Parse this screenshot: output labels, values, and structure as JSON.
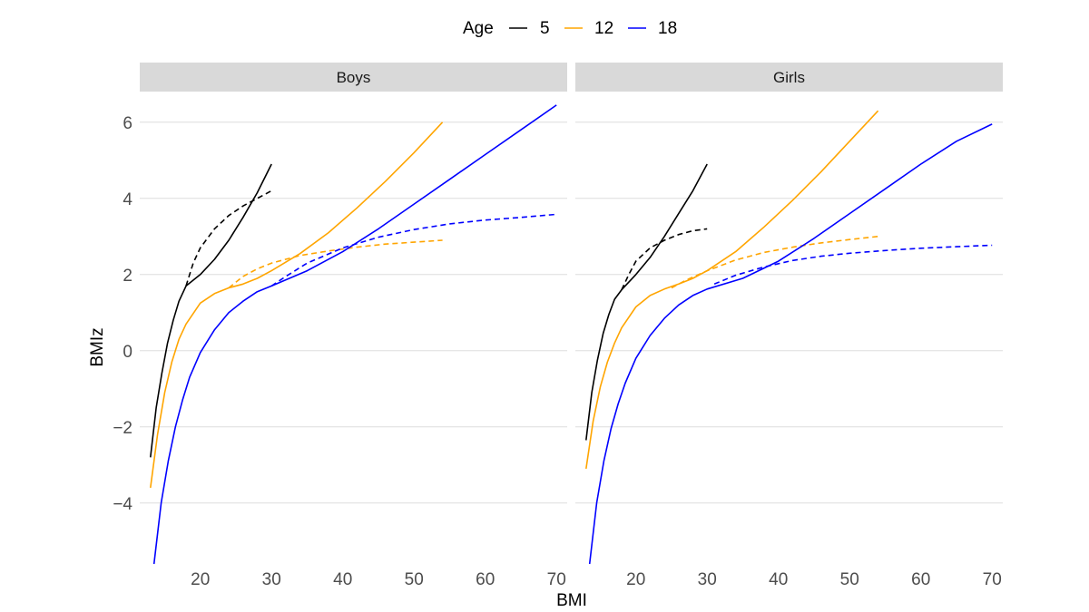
{
  "chart_data": {
    "type": "line",
    "xlabel": "BMI",
    "ylabel": "BMIz",
    "legend": {
      "title": "Age",
      "position": "top"
    },
    "xlim": [
      11.5,
      71.5
    ],
    "ylim": [
      -5.6,
      6.4
    ],
    "x_ticks": [
      20,
      30,
      40,
      50,
      60,
      70
    ],
    "y_ticks": [
      -4,
      -2,
      0,
      2,
      4,
      6
    ],
    "y_tick_labels": [
      "−4",
      "−2",
      "0",
      "2",
      "4",
      "6"
    ],
    "grid": true,
    "colors": {
      "5": "#000000",
      "12": "#FFA500",
      "18": "#0000FF"
    },
    "series_meta": [
      {
        "name": "5",
        "color": "#000000"
      },
      {
        "name": "12",
        "color": "#FFA500"
      },
      {
        "name": "18",
        "color": "#0000FF"
      }
    ],
    "panels": [
      {
        "label": "Boys",
        "series": [
          {
            "name": "5",
            "style": "solid",
            "x": [
              13,
              13.8,
              14.6,
              15.4,
              16.2,
              17.0,
              18.0,
              20.0,
              22.0,
              24.0,
              26.0,
              28.0,
              30.0
            ],
            "y": [
              -2.8,
              -1.5,
              -0.6,
              0.2,
              0.8,
              1.3,
              1.7,
              2.0,
              2.4,
              2.9,
              3.5,
              4.15,
              4.9
            ]
          },
          {
            "name": "5",
            "style": "dashed",
            "x": [
              18.0,
              19.0,
              20.0,
              22.0,
              24.0,
              26.0,
              28.0,
              30.0
            ],
            "y": [
              1.7,
              2.3,
              2.7,
              3.2,
              3.55,
              3.8,
              4.0,
              4.2
            ]
          },
          {
            "name": "12",
            "style": "solid",
            "x": [
              13,
              14,
              15,
              16,
              17,
              18,
              20,
              22,
              24,
              26,
              28,
              30,
              34,
              38,
              42,
              46,
              50,
              54
            ],
            "y": [
              -3.6,
              -2.2,
              -1.1,
              -0.3,
              0.3,
              0.7,
              1.25,
              1.5,
              1.65,
              1.75,
              1.9,
              2.1,
              2.55,
              3.1,
              3.75,
              4.45,
              5.2,
              6.0
            ]
          },
          {
            "name": "12",
            "style": "dashed",
            "x": [
              24,
              26,
              28,
              30,
              34,
              38,
              42,
              46,
              50,
              54
            ],
            "y": [
              1.65,
              1.95,
              2.15,
              2.3,
              2.5,
              2.62,
              2.72,
              2.8,
              2.85,
              2.9
            ]
          },
          {
            "name": "18",
            "style": "solid",
            "x": [
              13.5,
              14.5,
              15.5,
              16.5,
              17.5,
              18.5,
              20,
              22,
              24,
              26,
              28,
              30,
              35,
              40,
              45,
              50,
              55,
              60,
              65,
              70
            ],
            "y": [
              -5.6,
              -4.0,
              -2.9,
              -2.0,
              -1.3,
              -0.7,
              -0.05,
              0.55,
              1.0,
              1.3,
              1.55,
              1.7,
              2.1,
              2.6,
              3.2,
              3.85,
              4.5,
              5.15,
              5.8,
              6.45
            ]
          },
          {
            "name": "18",
            "style": "dashed",
            "x": [
              30,
              32,
              35,
              40,
              45,
              50,
              55,
              60,
              65,
              70
            ],
            "y": [
              1.7,
              1.95,
              2.3,
              2.7,
              2.98,
              3.18,
              3.33,
              3.43,
              3.5,
              3.58
            ]
          }
        ]
      },
      {
        "label": "Girls",
        "series": [
          {
            "name": "5",
            "style": "solid",
            "x": [
              13,
              13.8,
              14.6,
              15.4,
              16.2,
              17.0,
              18.0,
              20.0,
              22.0,
              24.0,
              26.0,
              28.0,
              30.0
            ],
            "y": [
              -2.35,
              -1.1,
              -0.25,
              0.45,
              0.95,
              1.35,
              1.6,
              2.0,
              2.45,
              3.0,
              3.6,
              4.2,
              4.9
            ]
          },
          {
            "name": "5",
            "style": "dashed",
            "x": [
              18.0,
              19.0,
              20.0,
              22.0,
              24.0,
              26.0,
              28.0,
              30.0
            ],
            "y": [
              1.6,
              2.0,
              2.35,
              2.7,
              2.9,
              3.05,
              3.15,
              3.2
            ]
          },
          {
            "name": "12",
            "style": "solid",
            "x": [
              13,
              14,
              15,
              16,
              17,
              18,
              20,
              22,
              24,
              26,
              28,
              30,
              34,
              38,
              42,
              46,
              50,
              54
            ],
            "y": [
              -3.1,
              -1.85,
              -0.95,
              -0.3,
              0.2,
              0.6,
              1.15,
              1.45,
              1.62,
              1.75,
              1.9,
              2.1,
              2.6,
              3.25,
              3.95,
              4.7,
              5.5,
              6.3
            ]
          },
          {
            "name": "12",
            "style": "dashed",
            "x": [
              25,
              27,
              30,
              34,
              38,
              42,
              46,
              50,
              54
            ],
            "y": [
              1.65,
              1.85,
              2.1,
              2.38,
              2.58,
              2.72,
              2.83,
              2.92,
              3.0
            ]
          },
          {
            "name": "18",
            "style": "solid",
            "x": [
              13.5,
              14.5,
              15.5,
              16.5,
              17.5,
              18.5,
              20,
              22,
              24,
              26,
              28,
              30,
              35,
              40,
              45,
              50,
              55,
              60,
              65,
              70
            ],
            "y": [
              -5.6,
              -4.0,
              -2.9,
              -2.05,
              -1.4,
              -0.85,
              -0.2,
              0.4,
              0.85,
              1.2,
              1.45,
              1.62,
              1.9,
              2.35,
              2.95,
              3.6,
              4.25,
              4.9,
              5.5,
              5.95
            ]
          },
          {
            "name": "18",
            "style": "dashed",
            "x": [
              31,
              34,
              38,
              42,
              46,
              50,
              55,
              60,
              65,
              70
            ],
            "y": [
              1.75,
              1.98,
              2.2,
              2.37,
              2.48,
              2.56,
              2.63,
              2.69,
              2.73,
              2.77
            ]
          }
        ]
      }
    ]
  }
}
